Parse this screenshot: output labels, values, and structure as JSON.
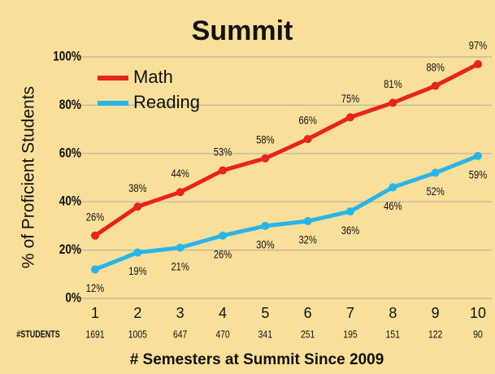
{
  "chart_data": {
    "type": "line",
    "title": "Summit",
    "ylabel": "% of Proficient Students",
    "xlabel": "# Semesters at Summit Since 2009",
    "categories": [
      "1",
      "2",
      "3",
      "4",
      "5",
      "6",
      "7",
      "8",
      "9",
      "10"
    ],
    "students": {
      "label": "#STUDENTS",
      "values": [
        "1691",
        "1005",
        "647",
        "470",
        "341",
        "251",
        "195",
        "151",
        "122",
        "90"
      ]
    },
    "series": [
      {
        "name": "Math",
        "color": "#e8231c",
        "values": [
          26,
          38,
          44,
          53,
          58,
          66,
          75,
          81,
          88,
          97
        ],
        "value_labels": [
          "26%",
          "38%",
          "44%",
          "53%",
          "58%",
          "66%",
          "75%",
          "81%",
          "88%",
          "97%"
        ]
      },
      {
        "name": "Reading",
        "color": "#2ab3e8",
        "values": [
          12,
          19,
          21,
          26,
          30,
          32,
          36,
          46,
          52,
          59
        ],
        "value_labels": [
          "12%",
          "19%",
          "21%",
          "26%",
          "30%",
          "32%",
          "36%",
          "46%",
          "52%",
          "59%"
        ]
      }
    ],
    "ylim": [
      0,
      100
    ],
    "yticks": [
      {
        "value": 0,
        "label": "0%"
      },
      {
        "value": 20,
        "label": "20%"
      },
      {
        "value": 40,
        "label": "40%"
      },
      {
        "value": 60,
        "label": "60%"
      },
      {
        "value": 80,
        "label": "80%"
      },
      {
        "value": 100,
        "label": "100%"
      }
    ],
    "grid": true,
    "legend": "upper left"
  }
}
